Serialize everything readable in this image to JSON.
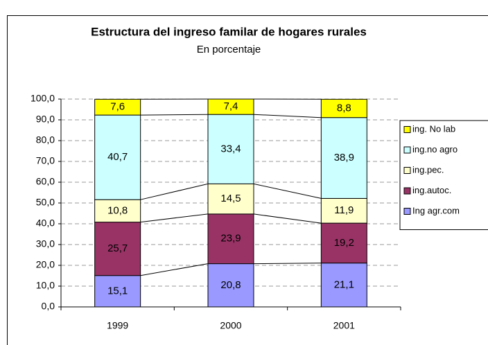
{
  "chart_data": {
    "type": "stacked_bar",
    "title": "Estructura del ingreso familar de hogares rurales",
    "subtitle": "En porcentaje",
    "categories": [
      "1999",
      "2000",
      "2001"
    ],
    "series": [
      {
        "name": "Ing agr.com",
        "color": "#9999ff",
        "values": [
          15.1,
          20.8,
          21.1
        ],
        "value_labels": [
          "15,1",
          "20,8",
          "21,1"
        ]
      },
      {
        "name": "ing.autoc.",
        "color": "#993366",
        "values": [
          25.7,
          23.9,
          19.2
        ],
        "value_labels": [
          "25,7",
          "23,9",
          "19,2"
        ]
      },
      {
        "name": "ing.pec.",
        "color": "#ffffcc",
        "values": [
          10.8,
          14.5,
          11.9
        ],
        "value_labels": [
          "10,8",
          "14,5",
          "11,9"
        ]
      },
      {
        "name": "ing.no agro",
        "color": "#ccffff",
        "values": [
          40.7,
          33.4,
          38.9
        ],
        "value_labels": [
          "40,7",
          "33,4",
          "38,9"
        ]
      },
      {
        "name": "ing. No lab",
        "color": "#ffff00",
        "values": [
          7.6,
          7.4,
          8.8
        ],
        "value_labels": [
          "7,6",
          "7,4",
          "8,8"
        ]
      }
    ],
    "ylim": [
      0,
      100
    ],
    "yticks": [
      {
        "value": 0,
        "label": "0,0"
      },
      {
        "value": 10,
        "label": "10,0"
      },
      {
        "value": 20,
        "label": "20,0"
      },
      {
        "value": 30,
        "label": "30,0"
      },
      {
        "value": 40,
        "label": "40,0"
      },
      {
        "value": 50,
        "label": "50,0"
      },
      {
        "value": 60,
        "label": "60,0"
      },
      {
        "value": 70,
        "label": "70,0"
      },
      {
        "value": 80,
        "label": "80,0"
      },
      {
        "value": 90,
        "label": "90,0"
      },
      {
        "value": 100,
        "label": "100,0"
      }
    ],
    "grid": true,
    "legend": "right"
  }
}
